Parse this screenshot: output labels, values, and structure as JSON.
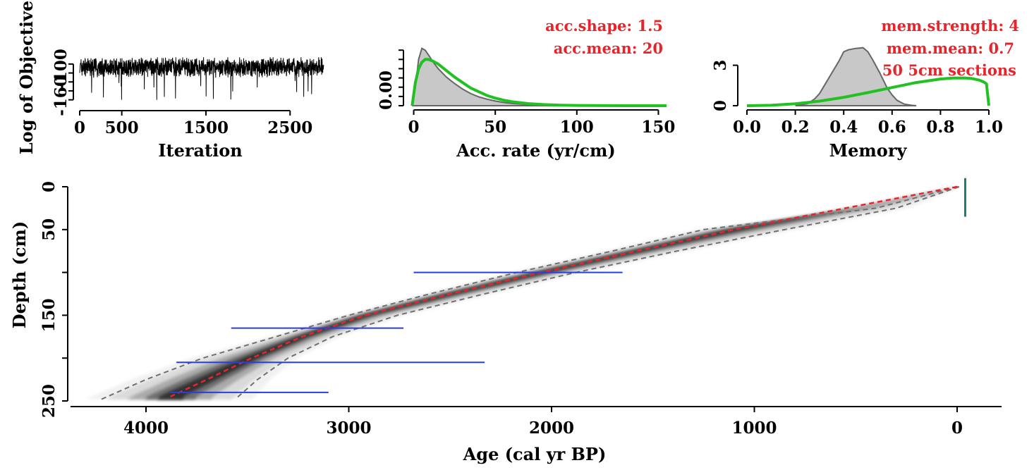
{
  "chart_data": [
    {
      "type": "line",
      "panel": "iteration",
      "xlabel": "Iteration",
      "ylabel": "Log of Objective",
      "xlim": [
        0,
        2900
      ],
      "ylim": [
        -190,
        -75
      ],
      "x_ticks": [
        0,
        500,
        1500,
        2500
      ],
      "y_ticks": [
        -160,
        -100
      ],
      "y_minor_ticks": [
        -180,
        -160,
        -140,
        -120,
        -100
      ],
      "series": [
        {
          "summary": "trace fluctuating mostly between -125 and -90, occasional dips to about -180",
          "n_iterations": 2900,
          "mean": -107,
          "min": -180,
          "max": -85
        }
      ]
    },
    {
      "type": "area",
      "panel": "acc-rate",
      "xlabel": "Acc. rate (yr/cm)",
      "xlim": [
        -5,
        155
      ],
      "x_ticks": [
        0,
        50,
        100,
        150
      ],
      "y_ticks": [
        0
      ],
      "y_tick_labels": [
        "0.00"
      ],
      "y_minor_ticks": [
        0,
        0.01,
        0.02,
        0.03,
        0.04,
        0.05,
        0.06
      ],
      "ylim": [
        0,
        0.067
      ],
      "annotations": [
        "acc.shape:  1.5",
        "acc.mean:  20"
      ],
      "series": [
        {
          "kind": "posterior",
          "color": "#c8c8c8",
          "x": [
            -1,
            1,
            3,
            5,
            7,
            9,
            12,
            15,
            20,
            25,
            30,
            35,
            40,
            45,
            50,
            55,
            60,
            70,
            80,
            90,
            100,
            120,
            140,
            155
          ],
          "values": [
            0,
            0.02,
            0.05,
            0.062,
            0.06,
            0.055,
            0.047,
            0.04,
            0.031,
            0.024,
            0.018,
            0.013,
            0.0095,
            0.007,
            0.005,
            0.0035,
            0.0025,
            0.0012,
            0.0006,
            0.0003,
            0.0001,
            3e-05,
            0,
            0
          ]
        },
        {
          "kind": "prior",
          "color": "#22c022",
          "x": [
            -1,
            1,
            3,
            5,
            7,
            9,
            12,
            15,
            20,
            25,
            30,
            35,
            40,
            45,
            50,
            55,
            60,
            70,
            80,
            90,
            100,
            120,
            140,
            155
          ],
          "values": [
            0,
            0.025,
            0.04,
            0.047,
            0.05,
            0.05,
            0.048,
            0.045,
            0.038,
            0.031,
            0.025,
            0.019,
            0.015,
            0.011,
            0.0082,
            0.006,
            0.0044,
            0.0023,
            0.0012,
            0.0006,
            0.0003,
            7e-05,
            2e-05,
            0
          ]
        }
      ]
    },
    {
      "type": "area",
      "panel": "memory",
      "xlabel": "Memory",
      "xlim": [
        0,
        1
      ],
      "x_ticks": [
        0.0,
        0.2,
        0.4,
        0.6,
        0.8,
        1.0
      ],
      "x_tick_labels": [
        "0.0",
        "0.2",
        "0.4",
        "0.6",
        "0.8",
        "1.0"
      ],
      "y_ticks": [
        0,
        3
      ],
      "ylim": [
        0,
        4.6
      ],
      "annotations": [
        "mem.strength: 4",
        "mem.mean: 0.7",
        "50 5cm sections"
      ],
      "series": [
        {
          "kind": "posterior",
          "color": "#c8c8c8",
          "x": [
            0.2,
            0.25,
            0.28,
            0.3,
            0.32,
            0.35,
            0.38,
            0.4,
            0.42,
            0.45,
            0.48,
            0.5,
            0.52,
            0.55,
            0.58,
            0.6,
            0.62,
            0.65,
            0.68,
            0.7
          ],
          "values": [
            0,
            0.15,
            0.5,
            0.9,
            1.5,
            2.4,
            3.3,
            4.0,
            4.15,
            4.25,
            4.3,
            4.0,
            3.4,
            2.4,
            1.3,
            0.8,
            0.4,
            0.12,
            0.03,
            0
          ]
        },
        {
          "kind": "prior",
          "color": "#22c022",
          "x": [
            0,
            0.1,
            0.2,
            0.3,
            0.4,
            0.5,
            0.6,
            0.7,
            0.8,
            0.85,
            0.9,
            0.93,
            0.96,
            0.98,
            0.99,
            1.0
          ],
          "values": [
            0,
            0.03,
            0.14,
            0.34,
            0.62,
            0.97,
            1.35,
            1.72,
            1.98,
            2.05,
            2.06,
            2.02,
            1.9,
            1.75,
            1.62,
            0
          ]
        }
      ]
    },
    {
      "type": "line",
      "panel": "age-depth",
      "xlabel": "Age (cal yr BP)",
      "ylabel": "Depth (cm)",
      "xlim": [
        4400,
        -200
      ],
      "ylim": [
        250,
        -5
      ],
      "x_ticks": [
        4000,
        3000,
        2000,
        1000,
        0
      ],
      "y_ticks": [
        0,
        50,
        150,
        250
      ],
      "y_minor_ticks": [
        0,
        50,
        100,
        150,
        200,
        250
      ],
      "series": [
        {
          "kind": "mean",
          "color": "#e8242a",
          "depth": [
            0,
            25,
            50,
            75,
            100,
            125,
            150,
            175,
            200,
            225,
            245
          ],
          "age": [
            0,
            550,
            1100,
            1580,
            2050,
            2500,
            2920,
            3230,
            3480,
            3700,
            3880
          ]
        },
        {
          "kind": "lower-95",
          "color": "#707070",
          "depth": [
            0,
            25,
            50,
            75,
            100,
            125,
            150,
            175,
            200,
            225,
            248
          ],
          "age": [
            -10,
            300,
            850,
            1380,
            1880,
            2330,
            2760,
            3080,
            3300,
            3450,
            3560
          ]
        },
        {
          "kind": "upper-95",
          "color": "#707070",
          "depth": [
            0,
            25,
            50,
            75,
            100,
            125,
            150,
            175,
            200,
            225,
            248
          ],
          "age": [
            -5,
            400,
            1250,
            1700,
            2170,
            2600,
            3000,
            3360,
            3720,
            4000,
            4220
          ]
        }
      ],
      "dates": [
        {
          "depth": 100,
          "age_min": 1650,
          "age_max": 2680,
          "color": "#2a3de0"
        },
        {
          "depth": 165,
          "age_min": 2730,
          "age_max": 3580,
          "color": "#2a3de0"
        },
        {
          "depth": 205,
          "age_min": 2330,
          "age_max": 3850,
          "color": "#2a3de0"
        },
        {
          "depth": 240,
          "age_min": 3100,
          "age_max": 3880,
          "color": "#2a3de0"
        }
      ],
      "top_marker": {
        "depth_min": -10,
        "depth_max": 35,
        "age": -40,
        "color": "#168080"
      }
    }
  ]
}
